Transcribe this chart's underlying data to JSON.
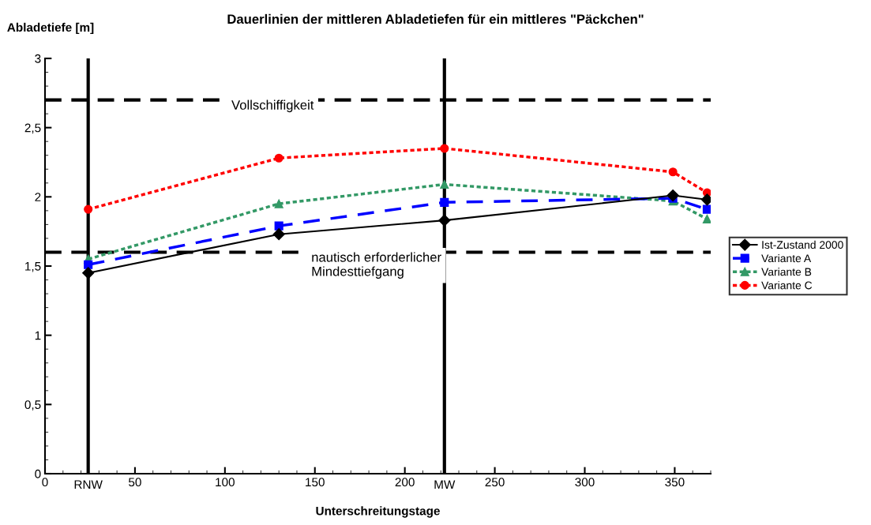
{
  "chart_data": {
    "type": "line",
    "title": "Dauerlinien der mittleren Abladetiefen für ein mittleres \"Päckchen\"",
    "xlabel": "Unterschreitungstage",
    "ylabel": "Abladetiefe [m]",
    "x": [
      24,
      130,
      222,
      349,
      368
    ],
    "series": [
      {
        "name": "Ist-Zustand 2000",
        "color": "#000000",
        "marker": "diamond",
        "line_style": "solid",
        "values": [
          1.45,
          1.73,
          1.83,
          2.01,
          1.98
        ]
      },
      {
        "name": "Variante A",
        "color": "#0000ff",
        "marker": "square",
        "line_style": "dashed",
        "values": [
          1.51,
          1.79,
          1.96,
          1.99,
          1.91
        ]
      },
      {
        "name": "Variante B",
        "color": "#339966",
        "marker": "triangle",
        "line_style": "dotted",
        "values": [
          1.55,
          1.95,
          2.09,
          1.97,
          1.84
        ]
      },
      {
        "name": "Variante C",
        "color": "#ff0000",
        "marker": "circle",
        "line_style": "dotted",
        "values": [
          1.91,
          2.28,
          2.35,
          2.18,
          2.03
        ]
      }
    ],
    "xlim": [
      0,
      370
    ],
    "xticks": [
      0,
      50,
      100,
      150,
      200,
      250,
      300,
      350
    ],
    "ylim": [
      0,
      3
    ],
    "yticks": [
      0,
      {
        "value": 0.5,
        "label": "0,5"
      },
      1,
      {
        "value": 1.5,
        "label": "1,5"
      },
      2,
      {
        "value": 2.5,
        "label": "2,5"
      },
      3
    ],
    "ref_lines": [
      {
        "axis": "y",
        "value": 2.7,
        "label": "Vollschiffigkeit",
        "color": "#000000",
        "line_style": "dashed"
      },
      {
        "axis": "y",
        "value": 1.6,
        "label": "nautisch erforderlicher\nMindesttiefgang",
        "color": "#000000",
        "line_style": "dashed"
      },
      {
        "axis": "x",
        "value": 24,
        "label": "RNW",
        "color": "#000000",
        "line_style": "solid"
      },
      {
        "axis": "x",
        "value": 222,
        "label": "MW",
        "color": "#000000",
        "line_style": "solid"
      }
    ],
    "grid": false,
    "legend": "right"
  }
}
